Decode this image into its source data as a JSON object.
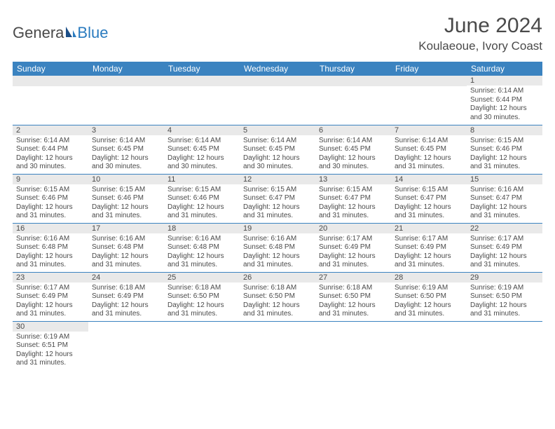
{
  "logo": {
    "part1": "Genera",
    "part2": "Blue"
  },
  "title": "June 2024",
  "location": "Koulaeoue, Ivory Coast",
  "header_bg": "#3b83c0",
  "header_fg": "#ffffff",
  "daynum_bg": "#e9e9e9",
  "text_color": "#4a4a4a",
  "border_color": "#3b83c0",
  "columns": [
    "Sunday",
    "Monday",
    "Tuesday",
    "Wednesday",
    "Thursday",
    "Friday",
    "Saturday"
  ],
  "weeks": [
    [
      null,
      null,
      null,
      null,
      null,
      null,
      {
        "n": "1",
        "sunrise": "6:14 AM",
        "sunset": "6:44 PM",
        "daylight": "12 hours and 30 minutes."
      }
    ],
    [
      {
        "n": "2",
        "sunrise": "6:14 AM",
        "sunset": "6:44 PM",
        "daylight": "12 hours and 30 minutes."
      },
      {
        "n": "3",
        "sunrise": "6:14 AM",
        "sunset": "6:45 PM",
        "daylight": "12 hours and 30 minutes."
      },
      {
        "n": "4",
        "sunrise": "6:14 AM",
        "sunset": "6:45 PM",
        "daylight": "12 hours and 30 minutes."
      },
      {
        "n": "5",
        "sunrise": "6:14 AM",
        "sunset": "6:45 PM",
        "daylight": "12 hours and 30 minutes."
      },
      {
        "n": "6",
        "sunrise": "6:14 AM",
        "sunset": "6:45 PM",
        "daylight": "12 hours and 30 minutes."
      },
      {
        "n": "7",
        "sunrise": "6:14 AM",
        "sunset": "6:45 PM",
        "daylight": "12 hours and 31 minutes."
      },
      {
        "n": "8",
        "sunrise": "6:15 AM",
        "sunset": "6:46 PM",
        "daylight": "12 hours and 31 minutes."
      }
    ],
    [
      {
        "n": "9",
        "sunrise": "6:15 AM",
        "sunset": "6:46 PM",
        "daylight": "12 hours and 31 minutes."
      },
      {
        "n": "10",
        "sunrise": "6:15 AM",
        "sunset": "6:46 PM",
        "daylight": "12 hours and 31 minutes."
      },
      {
        "n": "11",
        "sunrise": "6:15 AM",
        "sunset": "6:46 PM",
        "daylight": "12 hours and 31 minutes."
      },
      {
        "n": "12",
        "sunrise": "6:15 AM",
        "sunset": "6:47 PM",
        "daylight": "12 hours and 31 minutes."
      },
      {
        "n": "13",
        "sunrise": "6:15 AM",
        "sunset": "6:47 PM",
        "daylight": "12 hours and 31 minutes."
      },
      {
        "n": "14",
        "sunrise": "6:15 AM",
        "sunset": "6:47 PM",
        "daylight": "12 hours and 31 minutes."
      },
      {
        "n": "15",
        "sunrise": "6:16 AM",
        "sunset": "6:47 PM",
        "daylight": "12 hours and 31 minutes."
      }
    ],
    [
      {
        "n": "16",
        "sunrise": "6:16 AM",
        "sunset": "6:48 PM",
        "daylight": "12 hours and 31 minutes."
      },
      {
        "n": "17",
        "sunrise": "6:16 AM",
        "sunset": "6:48 PM",
        "daylight": "12 hours and 31 minutes."
      },
      {
        "n": "18",
        "sunrise": "6:16 AM",
        "sunset": "6:48 PM",
        "daylight": "12 hours and 31 minutes."
      },
      {
        "n": "19",
        "sunrise": "6:16 AM",
        "sunset": "6:48 PM",
        "daylight": "12 hours and 31 minutes."
      },
      {
        "n": "20",
        "sunrise": "6:17 AM",
        "sunset": "6:49 PM",
        "daylight": "12 hours and 31 minutes."
      },
      {
        "n": "21",
        "sunrise": "6:17 AM",
        "sunset": "6:49 PM",
        "daylight": "12 hours and 31 minutes."
      },
      {
        "n": "22",
        "sunrise": "6:17 AM",
        "sunset": "6:49 PM",
        "daylight": "12 hours and 31 minutes."
      }
    ],
    [
      {
        "n": "23",
        "sunrise": "6:17 AM",
        "sunset": "6:49 PM",
        "daylight": "12 hours and 31 minutes."
      },
      {
        "n": "24",
        "sunrise": "6:18 AM",
        "sunset": "6:49 PM",
        "daylight": "12 hours and 31 minutes."
      },
      {
        "n": "25",
        "sunrise": "6:18 AM",
        "sunset": "6:50 PM",
        "daylight": "12 hours and 31 minutes."
      },
      {
        "n": "26",
        "sunrise": "6:18 AM",
        "sunset": "6:50 PM",
        "daylight": "12 hours and 31 minutes."
      },
      {
        "n": "27",
        "sunrise": "6:18 AM",
        "sunset": "6:50 PM",
        "daylight": "12 hours and 31 minutes."
      },
      {
        "n": "28",
        "sunrise": "6:19 AM",
        "sunset": "6:50 PM",
        "daylight": "12 hours and 31 minutes."
      },
      {
        "n": "29",
        "sunrise": "6:19 AM",
        "sunset": "6:50 PM",
        "daylight": "12 hours and 31 minutes."
      }
    ],
    [
      {
        "n": "30",
        "sunrise": "6:19 AM",
        "sunset": "6:51 PM",
        "daylight": "12 hours and 31 minutes."
      },
      null,
      null,
      null,
      null,
      null,
      null
    ]
  ],
  "labels": {
    "sunrise": "Sunrise: ",
    "sunset": "Sunset: ",
    "daylight": "Daylight: "
  }
}
